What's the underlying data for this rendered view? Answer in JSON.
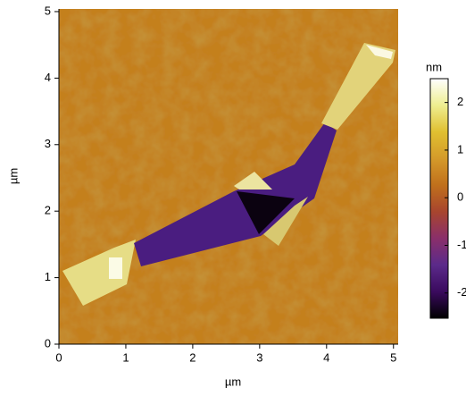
{
  "chart_data": {
    "type": "image",
    "xlabel": "µm",
    "ylabel": "µm",
    "xlim": [
      0,
      5.07
    ],
    "ylim": [
      0,
      5.04
    ],
    "xticks": [
      0,
      1,
      2,
      3,
      4,
      5
    ],
    "yticks": [
      0,
      1,
      2,
      3,
      4,
      5
    ],
    "colorbar": {
      "label": "nm",
      "lim": [
        -2.53,
        2.5
      ],
      "ticks": [
        -2,
        -1,
        0,
        1,
        2
      ],
      "colormap": [
        "#000000",
        "#3a0a5e",
        "#5b2a8a",
        "#8a2f6a",
        "#a8452e",
        "#c0701c",
        "#d49a2a",
        "#e0c030",
        "#eeee90",
        "#ffffff"
      ]
    }
  }
}
